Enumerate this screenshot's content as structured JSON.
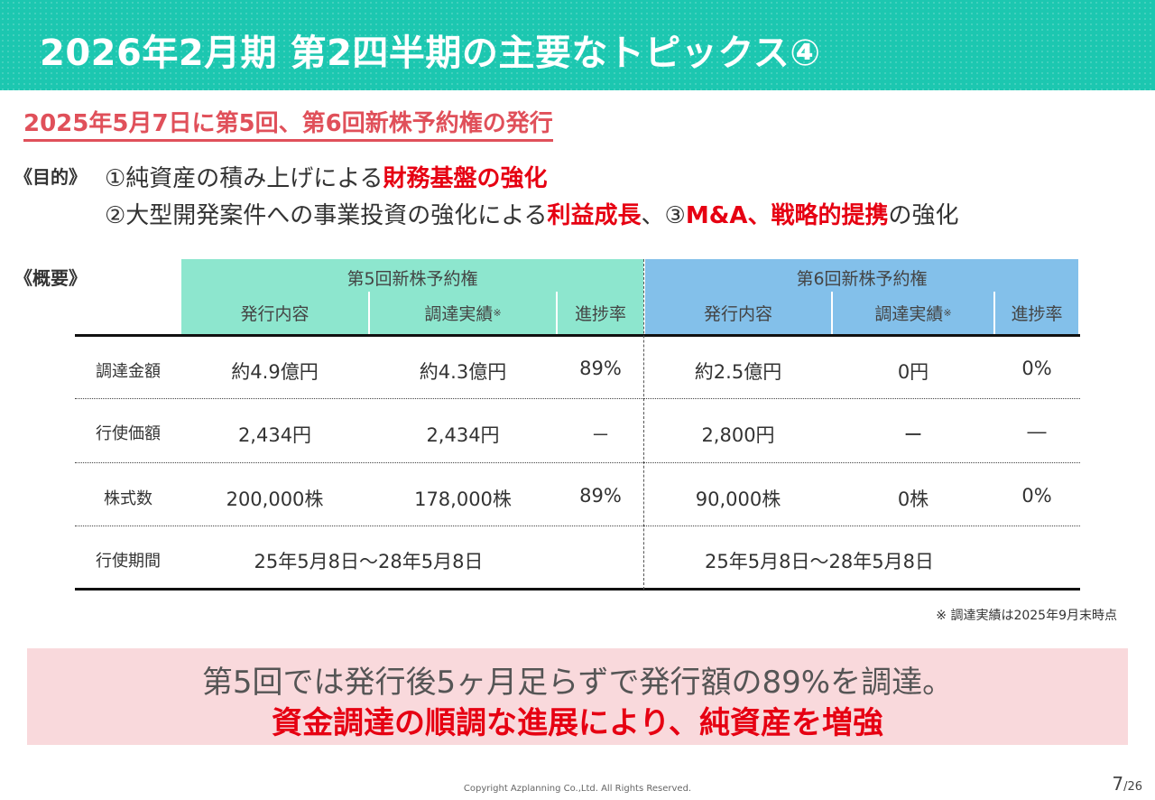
{
  "header": {
    "title": "2026年2月期 第2四半期の主要なトピックス④",
    "color": "#1cc7b0"
  },
  "subheading": "2025年5月7日に第5回、第6回新株予約権の発行",
  "purpose": {
    "label": "《目的》",
    "line1": {
      "prefix": "①純資産の積み上げによる",
      "highlight": "財務基盤の強化"
    },
    "line2": {
      "prefix": "②大型開発案件への事業投資の強化による",
      "highlight1": "利益成長",
      "middle": "、③",
      "highlight2": "M&A、戦略的提携",
      "suffix": "の強化"
    }
  },
  "overview": {
    "label": "《概要》",
    "group5": {
      "title": "第5回新株予約権",
      "color": "#8de6ce",
      "cols": {
        "issue": "発行内容",
        "achieved": "調達実績",
        "mark": "※",
        "progress": "進捗率"
      }
    },
    "group6": {
      "title": "第6回新株予約権",
      "color": "#83c0ea",
      "cols": {
        "issue": "発行内容",
        "achieved": "調達実績",
        "mark": "※",
        "progress": "進捗率"
      }
    },
    "rows": [
      {
        "label": "調達金額",
        "g5": [
          "約4.9億円",
          "約4.3億円",
          "89%"
        ],
        "g6": [
          "約2.5億円",
          "0円",
          "0%"
        ]
      },
      {
        "label": "行使価額",
        "g5": [
          "2,434円",
          "2,434円",
          "－"
        ],
        "g6": [
          "2,800円",
          "ー",
          "―"
        ]
      },
      {
        "label": "株式数",
        "g5": [
          "200,000株",
          "178,000株",
          "89%"
        ],
        "g6": [
          "90,000株",
          "0株",
          "0%"
        ]
      },
      {
        "label": "行使期間",
        "g5_period": "25年5月8日～28年5月8日",
        "g6_period": "25年5月8日～28年5月8日"
      }
    ]
  },
  "note": "※ 調達実績は2025年9月末時点",
  "summary": {
    "line1": "第5回では発行後5ヶ月足らずで発行額の89%を調達。",
    "line2": "資金調達の順調な進展により、純資産を増強",
    "background": "#f9d9dc"
  },
  "footer": {
    "copyright": "Copyright Azplanning Co.,Ltd. All Rights Reserved.",
    "page_current": "7",
    "page_total": "/26"
  }
}
